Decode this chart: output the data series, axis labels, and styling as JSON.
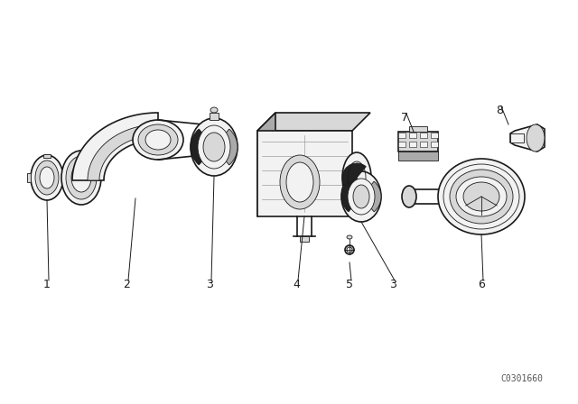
{
  "bg_color": "#ffffff",
  "lc": "#1a1a1a",
  "lw_main": 1.2,
  "lw_thin": 0.6,
  "fill_light": "#f2f2f2",
  "fill_mid": "#d8d8d8",
  "fill_dark": "#aaaaaa",
  "fill_black": "#222222",
  "watermark": "C0301660",
  "label_fs": 9,
  "figsize": [
    6.4,
    4.48
  ],
  "dpi": 100
}
